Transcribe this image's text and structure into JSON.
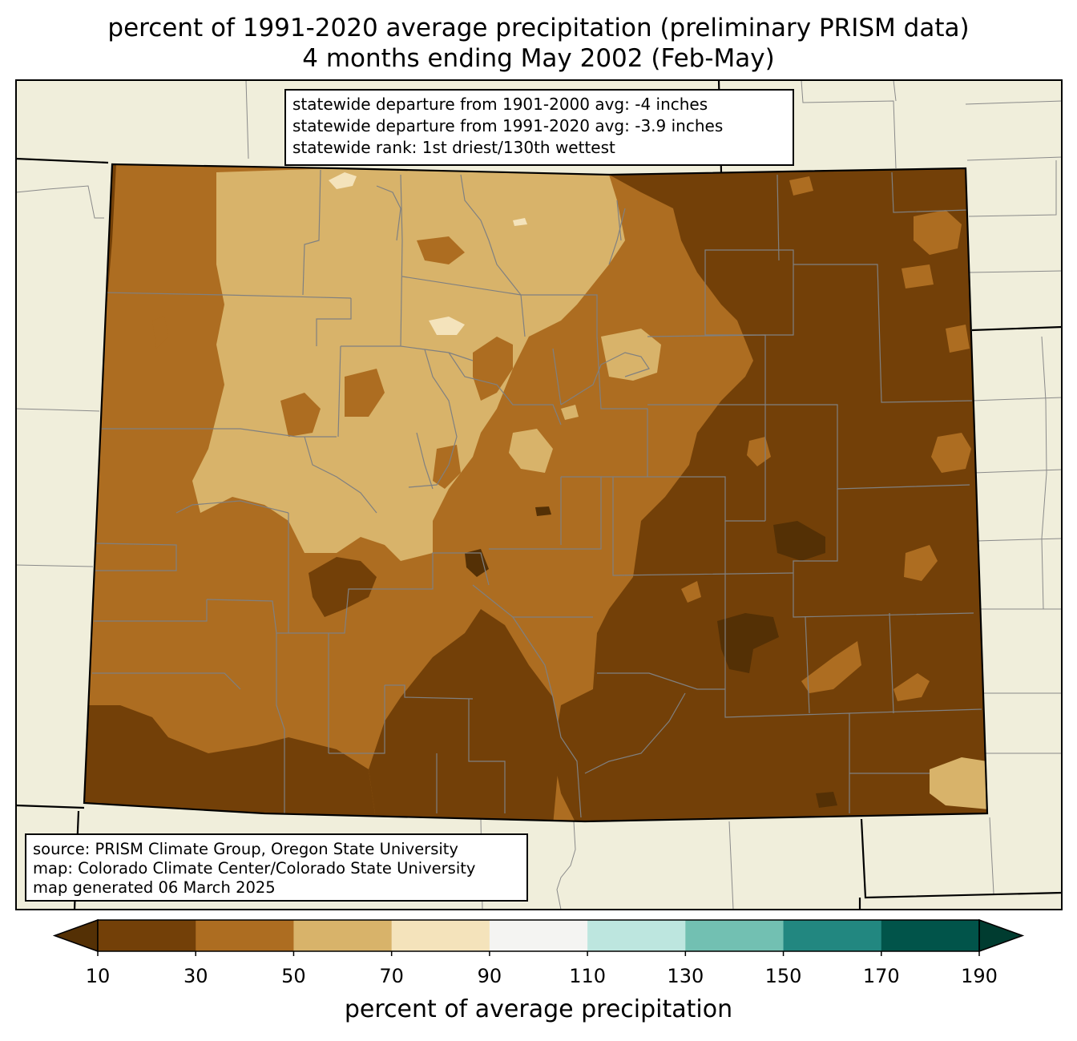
{
  "title_line1": "percent of 1991-2020 average precipitation (preliminary PRISM data)",
  "title_line2": "4 months ending May 2002 (Feb-May)",
  "stats": {
    "line1": "statewide departure from 1901-2000 avg: -4 inches",
    "line2": "statewide departure from 1991-2020 avg: -3.9 inches",
    "line3": "statewide rank: 1st driest/130th wettest"
  },
  "source": {
    "line1": "source: PRISM Climate Group, Oregon State University",
    "line2": "map: Colorado Climate Center/Colorado State University",
    "line3": "map generated 06 March 2025"
  },
  "colorbar": {
    "label": "percent of average precipitation",
    "ticks": [
      "10",
      "30",
      "50",
      "70",
      "90",
      "110",
      "130",
      "150",
      "170",
      "190"
    ],
    "under_color": "#543005",
    "over_color": "#003c30",
    "colors": [
      "#734008",
      "#ad6d21",
      "#d8b36a",
      "#f4e3bb",
      "#f4f4f2",
      "#bde6df",
      "#72c0b2",
      "#228780",
      "#01544a"
    ]
  },
  "map_colors": {
    "background": "#f0eedb",
    "pct_10_30": "#734008",
    "pct_30_50": "#ad6d21",
    "pct_50_70": "#d8b36a",
    "pct_70_90": "#f4e3bb",
    "pct_under_10": "#543005",
    "county_line": "#808080"
  }
}
